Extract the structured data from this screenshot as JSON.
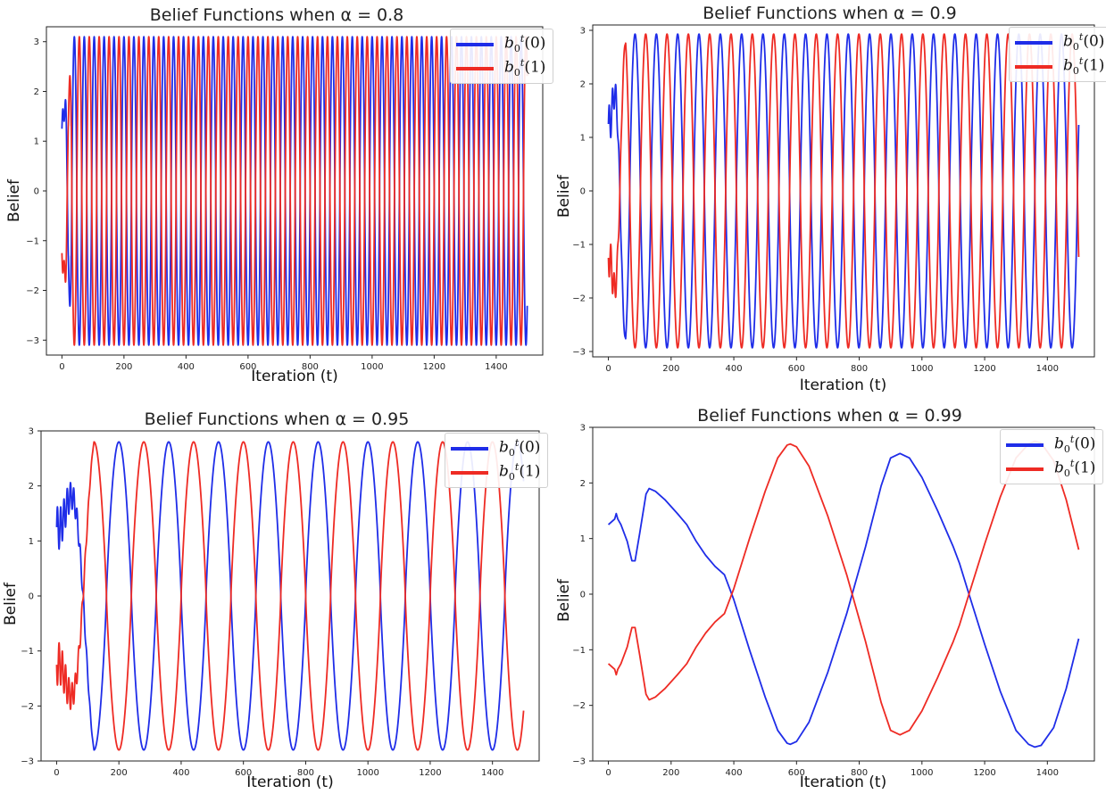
{
  "chart_data": [
    {
      "type": "line",
      "title": "Belief Functions when α = 0.8",
      "xlabel": "Iteration (t)",
      "ylabel": "Belief",
      "xlim": [
        -50,
        1550
      ],
      "ylim": [
        -3.3,
        3.3
      ],
      "xticks": [
        0,
        200,
        400,
        600,
        800,
        1000,
        1200,
        1400
      ],
      "yticks": [
        -3,
        -2,
        -1,
        0,
        1,
        2,
        3
      ],
      "legend_position": "top-right",
      "params": {
        "amplitude_peak": 3.1,
        "oscillation_period": 32,
        "start_values": [
          1.25,
          -1.25
        ],
        "transient_end": 30
      },
      "series": [
        {
          "name": "b0t(0)",
          "color": "#1f2de8"
        },
        {
          "name": "b0t(1)",
          "color": "#ee2b24"
        }
      ]
    },
    {
      "type": "line",
      "title": "Belief Functions when α = 0.9",
      "xlabel": "Iteration (t)",
      "ylabel": "Belief",
      "xlim": [
        -50,
        1550
      ],
      "ylim": [
        -3.1,
        3.1
      ],
      "xticks": [
        0,
        200,
        400,
        600,
        800,
        1000,
        1200,
        1400
      ],
      "yticks": [
        -3,
        -2,
        -1,
        0,
        1,
        2,
        3
      ],
      "legend_position": "top-right",
      "params": {
        "amplitude_peak": 2.93,
        "oscillation_period": 68,
        "start_values": [
          1.25,
          -1.25
        ],
        "transient_end": 55
      },
      "series": [
        {
          "name": "b0t(0)",
          "color": "#1f2de8"
        },
        {
          "name": "b0t(1)",
          "color": "#ee2b24"
        }
      ]
    },
    {
      "type": "line",
      "title": "Belief Functions when α = 0.95",
      "xlabel": "Iteration (t)",
      "ylabel": "Belief",
      "xlim": [
        -50,
        1550
      ],
      "ylim": [
        -3.0,
        3.0
      ],
      "xticks": [
        0,
        200,
        400,
        600,
        800,
        1000,
        1200,
        1400
      ],
      "yticks": [
        -3,
        -2,
        -1,
        0,
        1,
        2,
        3
      ],
      "legend_position": "top-right",
      "params": {
        "amplitude_peak": 2.8,
        "oscillation_period": 160,
        "start_values": [
          1.25,
          -1.25
        ],
        "transient_end": 120
      },
      "series": [
        {
          "name": "b0t(0)",
          "color": "#1f2de8"
        },
        {
          "name": "b0t(1)",
          "color": "#ee2b24"
        }
      ]
    },
    {
      "type": "line",
      "title": "Belief Functions when α = 0.99",
      "xlabel": "Iteration (t)",
      "ylabel": "Belief",
      "xlim": [
        -50,
        1550
      ],
      "ylim": [
        -3.0,
        3.0
      ],
      "xticks": [
        0,
        200,
        400,
        600,
        800,
        1000,
        1200,
        1400
      ],
      "yticks": [
        -3,
        -2,
        -1,
        0,
        1,
        2,
        3
      ],
      "legend_position": "top-right",
      "series": [
        {
          "name": "b0t(0)",
          "color": "#1f2de8",
          "x": [
            0,
            10,
            20,
            25,
            30,
            40,
            60,
            75,
            85,
            100,
            120,
            130,
            150,
            180,
            220,
            250,
            280,
            310,
            340,
            370,
            400,
            450,
            500,
            540,
            570,
            580,
            600,
            640,
            700,
            760,
            820,
            870,
            900,
            930,
            960,
            1000,
            1050,
            1100,
            1120,
            1150,
            1200,
            1250,
            1300,
            1340,
            1360,
            1380,
            1420,
            1460,
            1500
          ],
          "y": [
            1.25,
            1.3,
            1.35,
            1.45,
            1.35,
            1.25,
            0.95,
            0.6,
            0.6,
            1.1,
            1.8,
            1.9,
            1.85,
            1.7,
            1.45,
            1.25,
            0.95,
            0.7,
            0.5,
            0.35,
            -0.1,
            -1.0,
            -1.85,
            -2.45,
            -2.68,
            -2.7,
            -2.65,
            -2.3,
            -1.4,
            -0.35,
            0.85,
            1.95,
            2.45,
            2.53,
            2.45,
            2.1,
            1.5,
            0.85,
            0.55,
            0.0,
            -0.9,
            -1.75,
            -2.45,
            -2.7,
            -2.75,
            -2.72,
            -2.4,
            -1.7,
            -0.8
          ]
        },
        {
          "name": "b0t(1)",
          "color": "#ee2b24",
          "x": [
            0,
            10,
            20,
            25,
            30,
            40,
            60,
            75,
            85,
            100,
            120,
            130,
            150,
            180,
            220,
            250,
            280,
            310,
            340,
            370,
            400,
            450,
            500,
            540,
            570,
            580,
            600,
            640,
            700,
            760,
            820,
            870,
            900,
            930,
            960,
            1000,
            1050,
            1100,
            1120,
            1150,
            1200,
            1250,
            1300,
            1340,
            1360,
            1380,
            1420,
            1460,
            1500
          ],
          "y": [
            -1.25,
            -1.3,
            -1.35,
            -1.45,
            -1.35,
            -1.25,
            -0.95,
            -0.6,
            -0.6,
            -1.1,
            -1.8,
            -1.9,
            -1.85,
            -1.7,
            -1.45,
            -1.25,
            -0.95,
            -0.7,
            -0.5,
            -0.35,
            0.1,
            1.0,
            1.85,
            2.45,
            2.68,
            2.7,
            2.65,
            2.3,
            1.4,
            0.35,
            -0.85,
            -1.95,
            -2.45,
            -2.53,
            -2.45,
            -2.1,
            -1.5,
            -0.85,
            -0.55,
            0.0,
            0.9,
            1.75,
            2.45,
            2.7,
            2.75,
            2.72,
            2.4,
            1.7,
            0.8
          ]
        }
      ]
    }
  ]
}
